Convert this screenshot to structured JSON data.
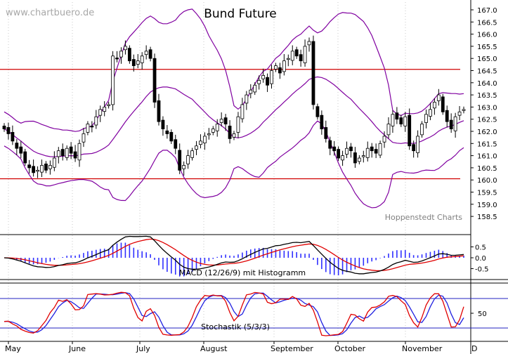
{
  "watermark": "www.chartbuero.de",
  "title": "Bund Future",
  "credit": "Hoppenstedt Charts",
  "colors": {
    "candle_up": "#ffffff",
    "candle_down": "#000000",
    "bollinger": "#8000a0",
    "hline": "#d00000",
    "macd_line": "#000000",
    "signal_line": "#e00000",
    "histogram": "#3030ff",
    "stoch_k": "#e00000",
    "stoch_d": "#2020e0",
    "stoch_level": "#2020c0"
  },
  "months": [
    "May",
    "June",
    "July",
    "August",
    "September",
    "October",
    "November",
    "D"
  ],
  "chart_data": [
    {
      "type": "candlestick",
      "title": "Bund Future",
      "ylim": [
        158.0,
        167.2
      ],
      "yticks": [
        "167.0",
        "166.5",
        "166.0",
        "165.5",
        "165.0",
        "164.5",
        "164.0",
        "163.5",
        "163.0",
        "162.5",
        "162.0",
        "161.5",
        "161.0",
        "160.5",
        "160.0",
        "159.5",
        "159.0",
        "158.5"
      ],
      "horizontal_lines": [
        164.55,
        160.05
      ],
      "bollinger_band": "upper / middle / lower envelope (20-day)",
      "close": [
        162.1,
        161.9,
        161.6,
        161.3,
        161.1,
        160.7,
        160.5,
        160.3,
        160.4,
        160.6,
        160.4,
        160.6,
        160.9,
        161.2,
        161.0,
        161.3,
        161.1,
        160.9,
        161.5,
        161.9,
        162.3,
        162.2,
        162.6,
        162.9,
        163.0,
        163.1,
        165.1,
        165.0,
        165.3,
        165.5,
        164.9,
        164.7,
        164.9,
        165.1,
        165.3,
        165.0,
        163.2,
        162.4,
        162.1,
        161.9,
        161.6,
        161.3,
        160.4,
        160.6,
        161.0,
        161.2,
        161.4,
        161.6,
        161.8,
        161.9,
        162.1,
        162.3,
        162.5,
        162.3,
        161.7,
        161.9,
        162.6,
        163.1,
        163.5,
        163.7,
        163.9,
        164.1,
        164.3,
        163.9,
        164.5,
        164.7,
        164.4,
        164.9,
        165.0,
        165.3,
        165.1,
        164.9,
        165.5,
        165.7,
        163.1,
        162.6,
        162.1,
        161.7,
        161.3,
        161.2,
        160.9,
        161.0,
        161.3,
        161.2,
        160.7,
        160.9,
        161.0,
        161.3,
        161.2,
        161.1,
        161.5,
        161.8,
        162.3,
        162.7,
        162.5,
        162.3,
        162.6,
        161.4,
        161.2,
        161.8,
        162.3,
        162.7,
        162.9,
        163.2,
        163.5,
        162.8,
        162.4,
        162.1,
        162.6,
        162.8,
        162.9
      ],
      "macd": {
        "label": "MACD (12/26/9) mit Histogramm",
        "yticks": [
          "0.5",
          "0.0",
          "-0.5"
        ],
        "ylim": [
          -0.9,
          0.9
        ]
      },
      "stochastic": {
        "label": "Stochastik (5/3/3)",
        "yticks": [
          "50"
        ],
        "ylim": [
          0,
          100
        ],
        "levels": [
          80,
          20
        ]
      }
    }
  ]
}
